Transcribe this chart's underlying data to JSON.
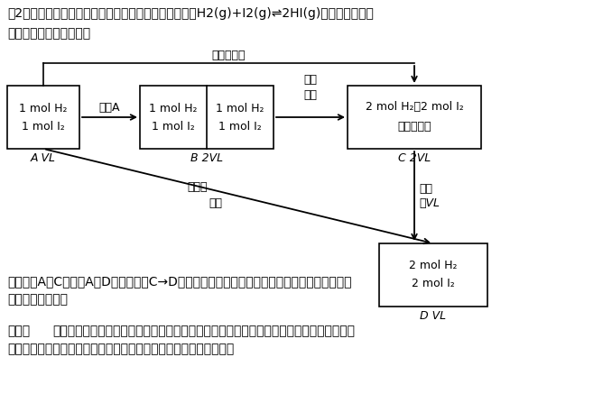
{
  "title_line1": "（2）对于反应前后气体物质的量没有变化的反应，如：H2(g)+I2(g)⇌2HI(g)等温等压、等温",
  "title_line2": "等容下建立平衡如下图：",
  "text_bottom1": "容易得出A与C等效，A与D等效。因为C→D平衡不发生移动。对反应前后气体体积不变的反应加",
  "text_bottom2": "压，平衡不移动。",
  "text_conclusion_label": "结论：",
  "text_conclusion": "对于反应前后气体物质的量不变的反应，无论是恒温恒压还是恒温恒容，只要加入的物质按",
  "text_conclusion2": "方程式化学计量数转化到方程式一侧，比例相同就可建立等效平衡。",
  "bg_color": "#ffffff",
  "text_color": "#000000"
}
